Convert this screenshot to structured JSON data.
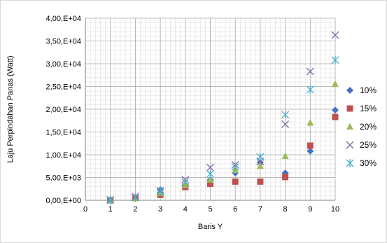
{
  "chart_data": {
    "type": "scatter",
    "xlabel": "Baris Y",
    "ylabel": "Laju Perpindahan Panas (Watt)",
    "xlim": [
      0,
      10
    ],
    "ylim": [
      0,
      40000
    ],
    "x_ticks": [
      0,
      1,
      2,
      3,
      4,
      5,
      6,
      7,
      8,
      9,
      10
    ],
    "x_tick_labels": [
      "0",
      "1",
      "2",
      "3",
      "4",
      "5",
      "6",
      "7",
      "8",
      "9",
      "10"
    ],
    "y_ticks": [
      0,
      5000,
      10000,
      15000,
      20000,
      25000,
      30000,
      35000,
      40000
    ],
    "y_tick_labels": [
      "0,00,E+00",
      "5,00,E+03",
      "1,00,E+04",
      "1,50,E+04",
      "2,00,E+04",
      "2,50,E+04",
      "3,00,E+04",
      "3,50,E+04",
      "4,00,E+04"
    ],
    "grid": true,
    "minor_grid": true,
    "legend_position": "right",
    "series": [
      {
        "name": "10%",
        "marker": "diamond",
        "color": "#4472c4",
        "x": [
          1,
          2,
          3,
          4,
          5,
          6,
          7,
          8,
          9,
          10
        ],
        "values": [
          100,
          700,
          2300,
          3000,
          4500,
          6000,
          8300,
          6000,
          10800,
          19800
        ]
      },
      {
        "name": "15%",
        "marker": "square",
        "color": "#c0504d",
        "x": [
          1,
          2,
          3,
          4,
          5,
          6,
          7,
          8,
          9,
          10
        ],
        "values": [
          0,
          500,
          1200,
          2900,
          3600,
          4100,
          4100,
          5100,
          12000,
          18300
        ]
      },
      {
        "name": "20%",
        "marker": "triangle",
        "color": "#9bbb59",
        "x": [
          1,
          2,
          3,
          4,
          5,
          6,
          7,
          8,
          9,
          10
        ],
        "values": [
          0,
          400,
          1600,
          3300,
          4500,
          6600,
          7500,
          9700,
          17000,
          25500
        ]
      },
      {
        "name": "25%",
        "marker": "x",
        "color": "#8064a2",
        "x": [
          1,
          2,
          3,
          4,
          5,
          6,
          7,
          8,
          9,
          10
        ],
        "values": [
          100,
          800,
          2100,
          4500,
          7200,
          7800,
          8500,
          16700,
          28300,
          36300
        ]
      },
      {
        "name": "30%",
        "marker": "star",
        "color": "#4bacc6",
        "x": [
          1,
          2,
          3,
          4,
          5,
          6,
          7,
          8,
          9,
          10
        ],
        "values": [
          0,
          600,
          2000,
          4000,
          5800,
          7300,
          9500,
          18800,
          24300,
          30800
        ]
      }
    ]
  }
}
